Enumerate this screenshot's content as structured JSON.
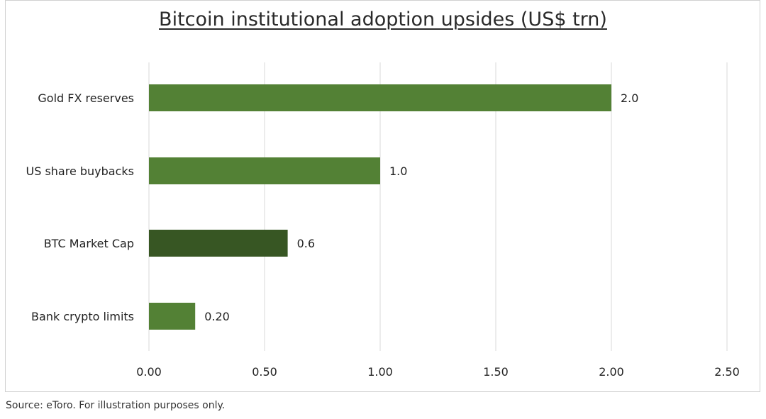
{
  "chart_data": {
    "type": "bar",
    "orientation": "horizontal",
    "title": "Bitcoin institutional adoption upsides (US$ trn)",
    "categories": [
      "Gold FX reserves",
      "US share buybacks",
      "BTC Market Cap",
      "Bank crypto limits"
    ],
    "values": [
      2.0,
      1.0,
      0.6,
      0.2
    ],
    "value_labels": [
      "2.0",
      "1.0",
      "0.6",
      "0.20"
    ],
    "bar_colors": [
      "#538135",
      "#538135",
      "#375623",
      "#538135"
    ],
    "xlim": [
      0,
      2.5
    ],
    "x_ticks": [
      0,
      0.5,
      1.0,
      1.5,
      2.0,
      2.5
    ],
    "x_tick_labels": [
      "0.00",
      "0.50",
      "1.00",
      "1.50",
      "2.00",
      "2.50"
    ],
    "grid": "vertical",
    "xlabel": "",
    "ylabel": ""
  },
  "footer": {
    "source": "Source: eToro. For illustration purposes only."
  }
}
